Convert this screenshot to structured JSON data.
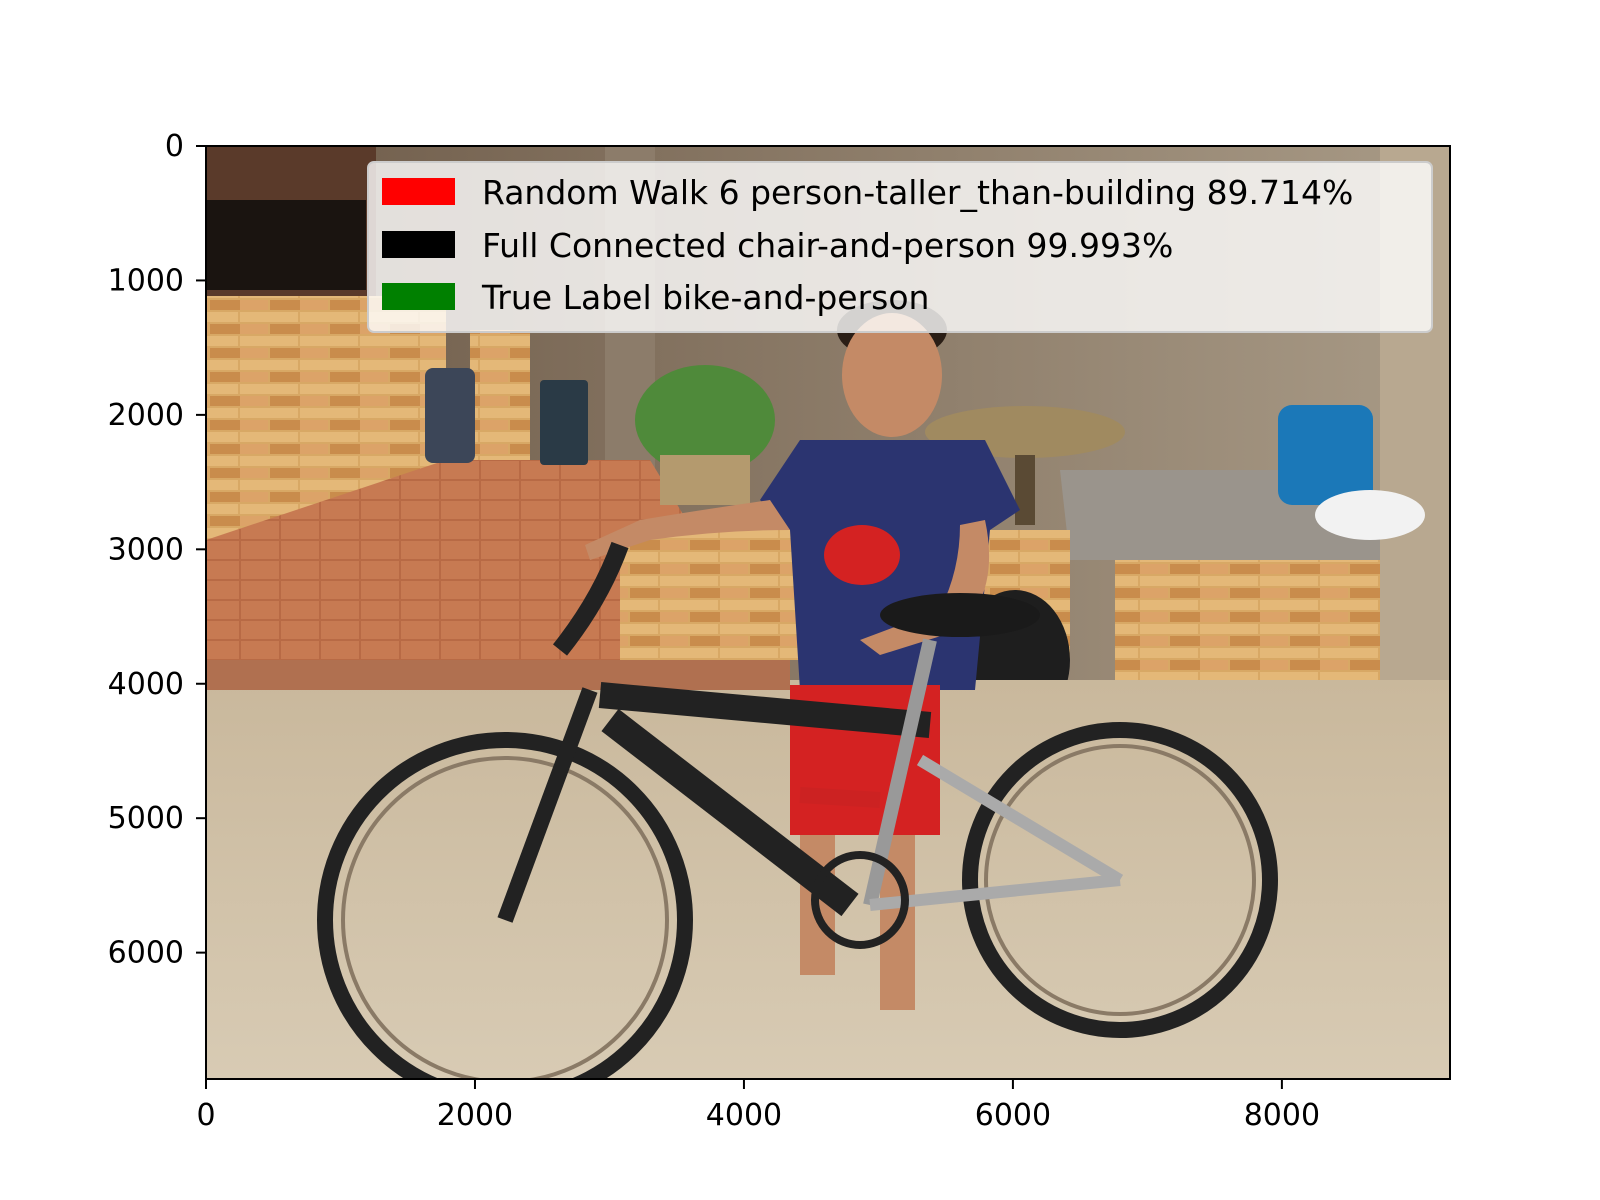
{
  "plot": {
    "x_axis": {
      "range": [
        0,
        9250
      ],
      "ticks": [
        {
          "value": 0,
          "label": "0"
        },
        {
          "value": 2000,
          "label": "2000"
        },
        {
          "value": 4000,
          "label": "4000"
        },
        {
          "value": 6000,
          "label": "6000"
        },
        {
          "value": 8000,
          "label": "8000"
        }
      ]
    },
    "y_axis": {
      "range": [
        0,
        6940
      ],
      "inverted": true,
      "ticks": [
        {
          "value": 0,
          "label": "0"
        },
        {
          "value": 1000,
          "label": "1000"
        },
        {
          "value": 2000,
          "label": "2000"
        },
        {
          "value": 3000,
          "label": "3000"
        },
        {
          "value": 4000,
          "label": "4000"
        },
        {
          "value": 5000,
          "label": "5000"
        },
        {
          "value": 6000,
          "label": "6000"
        }
      ]
    }
  },
  "legend": {
    "placement": "top-right",
    "entries": [
      {
        "label": "Random Walk 6  person-taller_than-building 89.714%",
        "color": "#ff0000"
      },
      {
        "label": "Full Connected   chair-and-person 99.993%",
        "color": "#000000"
      },
      {
        "label": "True Label bike-and-person",
        "color": "#008000"
      }
    ]
  },
  "photo": {
    "subject": "boy standing with black mountain bike",
    "colors": {
      "floor": "#cdbfa6",
      "brick": "#d9a25a",
      "shirt": "#2b3470",
      "shorts": "#d42222",
      "bike": "#222222",
      "watering_can": "#1b78b8",
      "counter": "#9a948c"
    }
  }
}
